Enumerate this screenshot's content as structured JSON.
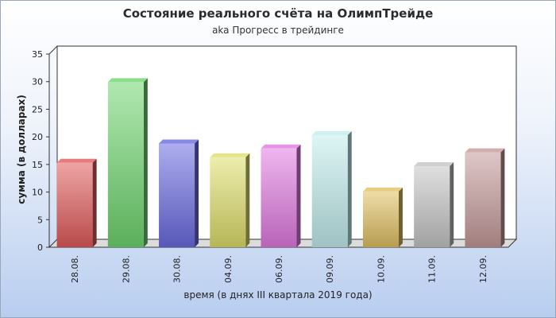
{
  "chart_data": {
    "type": "bar",
    "title": "Состояние реального счёта на ОлимпТрейде",
    "subtitle": "aka Прогресс в трейдинге",
    "xlabel": "время (в днях III квартала 2019 года)",
    "ylabel": "сумма (в долларах)",
    "ylim": [
      0,
      35
    ],
    "yticks": [
      0,
      5,
      10,
      15,
      20,
      25,
      30,
      35
    ],
    "grid": false,
    "categories": [
      "28.08.",
      "29.08.",
      "30.08.",
      "04.09.",
      "06.09.",
      "09.09.",
      "10.09.",
      "11.09.",
      "12.09."
    ],
    "values": [
      15.3,
      29.9,
      18.8,
      16.3,
      17.9,
      20.3,
      10.1,
      14.7,
      17.2
    ],
    "colors": [
      "#e05a5a",
      "#6fd66f",
      "#6a6ae0",
      "#dede6a",
      "#e07ae0",
      "#c2ecec",
      "#e0c060",
      "#c4c4c4",
      "#c49a9a"
    ]
  }
}
